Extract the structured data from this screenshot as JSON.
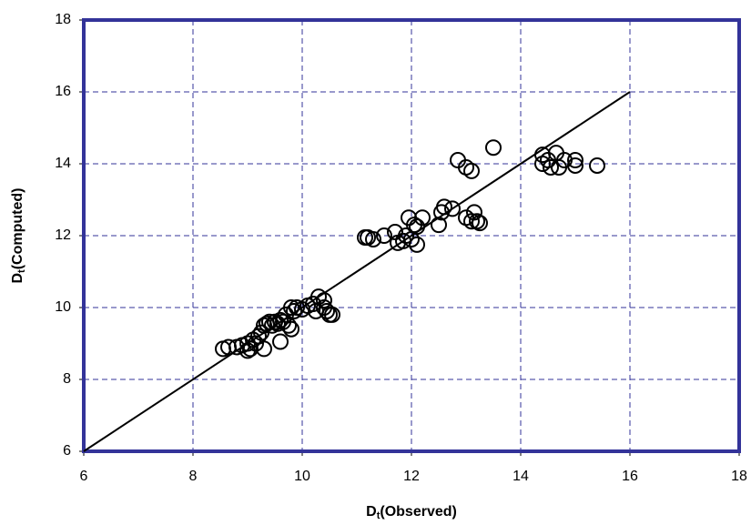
{
  "chart_data": {
    "type": "scatter",
    "xlabel": [
      "D",
      "t",
      "(Observed)"
    ],
    "ylabel": [
      "D",
      "t",
      "(Computed)"
    ],
    "xlim": [
      6,
      18
    ],
    "xticks": [
      6,
      8,
      10,
      12,
      14,
      16,
      18
    ],
    "ylim": [
      6,
      18
    ],
    "yticks": [
      6,
      8,
      10,
      12,
      14,
      16,
      18
    ],
    "grid": true,
    "color": "#000000",
    "reference_line": {
      "x": [
        6,
        16
      ],
      "y": [
        6,
        16
      ]
    },
    "x": [
      8.55,
      8.65,
      8.8,
      8.9,
      9.0,
      9.0,
      9.05,
      9.1,
      9.15,
      9.2,
      9.25,
      9.3,
      9.35,
      9.3,
      9.4,
      9.45,
      9.5,
      9.55,
      9.6,
      9.6,
      9.65,
      9.7,
      9.75,
      9.8,
      9.8,
      9.85,
      9.9,
      10.0,
      10.1,
      10.2,
      10.25,
      10.3,
      10.4,
      10.4,
      10.45,
      10.5,
      10.55,
      11.15,
      11.2,
      11.3,
      11.5,
      11.7,
      11.75,
      11.85,
      11.9,
      11.95,
      12.0,
      12.05,
      12.1,
      12.1,
      12.2,
      12.5,
      12.55,
      12.6,
      12.75,
      12.85,
      13.0,
      13.0,
      13.1,
      13.1,
      13.15,
      13.2,
      13.25,
      13.5,
      14.4,
      14.4,
      14.5,
      14.55,
      14.65,
      14.7,
      14.8,
      15.0,
      15.0,
      15.4
    ],
    "values": [
      8.85,
      8.9,
      8.9,
      8.95,
      9.0,
      8.8,
      8.85,
      9.1,
      9.0,
      9.2,
      9.3,
      9.5,
      9.55,
      8.85,
      9.6,
      9.5,
      9.6,
      9.55,
      9.65,
      9.05,
      9.6,
      9.8,
      9.5,
      9.4,
      10.0,
      9.9,
      10.0,
      9.95,
      10.05,
      10.1,
      9.9,
      10.3,
      10.2,
      10.0,
      9.9,
      9.8,
      9.8,
      11.95,
      11.95,
      11.9,
      12.0,
      12.1,
      11.8,
      11.85,
      12.0,
      12.5,
      11.9,
      12.3,
      11.75,
      12.25,
      12.5,
      12.3,
      12.65,
      12.8,
      12.75,
      14.1,
      12.5,
      13.9,
      12.4,
      13.8,
      12.65,
      12.4,
      12.35,
      14.45,
      14.25,
      14.0,
      14.1,
      13.9,
      14.3,
      13.9,
      14.1,
      14.1,
      13.95,
      13.95
    ]
  }
}
